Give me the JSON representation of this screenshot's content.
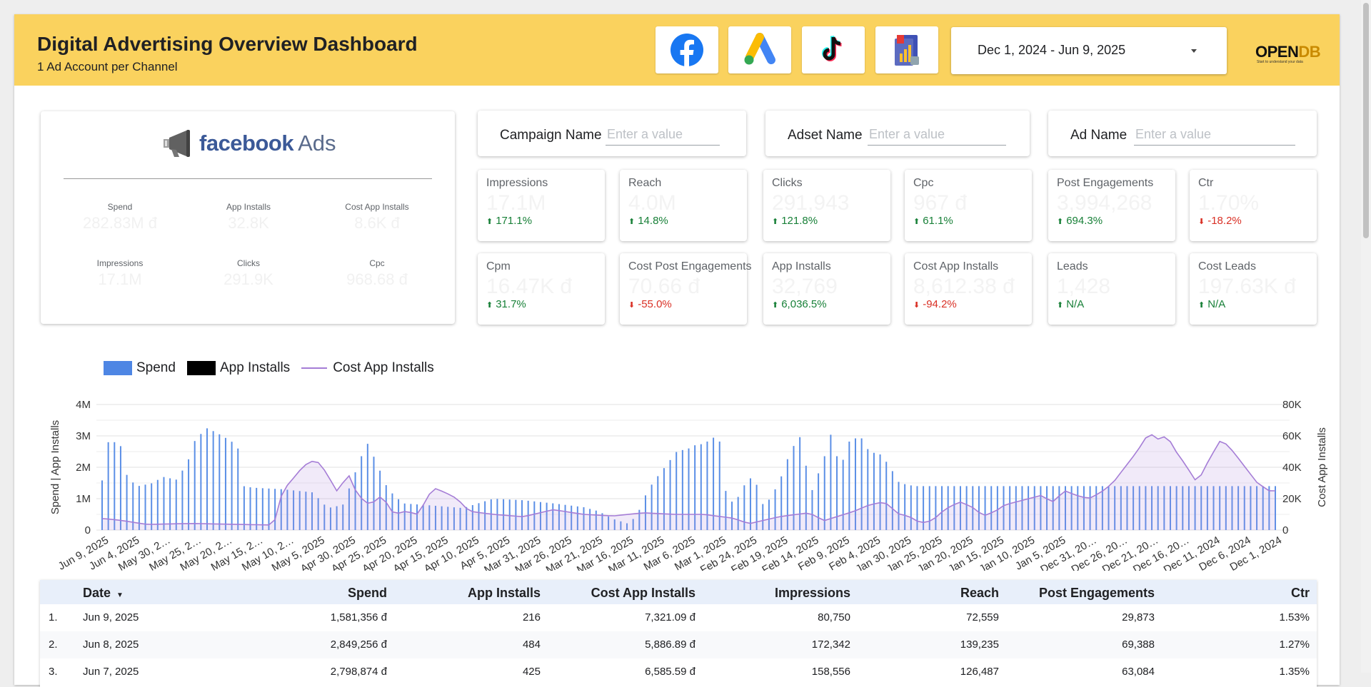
{
  "header": {
    "title": "Digital Advertising Overview Dashboard",
    "subtitle": "1 Ad Account per Channel",
    "channels": [
      {
        "name": "facebook-icon"
      },
      {
        "name": "google-ads-icon"
      },
      {
        "name": "tiktok-icon"
      },
      {
        "name": "report-icon"
      }
    ],
    "date_range": "Dec 1, 2024 - Jun 9, 2025",
    "logo_text": "OPEN",
    "logo_suffix": "DB",
    "logo_tagline": "Start to understand your data"
  },
  "fb_card": {
    "brand": "facebook",
    "brand_suffix": "Ads",
    "stats": [
      {
        "label": "Spend",
        "value": "282.83M đ"
      },
      {
        "label": "App Installs",
        "value": "32.8K"
      },
      {
        "label": "Cost App Installs",
        "value": "8.6K đ"
      },
      {
        "label": "Impressions",
        "value": "17.1M"
      },
      {
        "label": "Clicks",
        "value": "291.9K"
      },
      {
        "label": "Cpc",
        "value": "968.68 đ"
      }
    ]
  },
  "filters": [
    {
      "label": "Campaign Name",
      "placeholder": "Enter a value"
    },
    {
      "label": "Adset Name",
      "placeholder": "Enter a value"
    },
    {
      "label": "Ad Name",
      "placeholder": "Enter a value"
    }
  ],
  "kpis": [
    {
      "label": "Impressions",
      "value": "17.1M",
      "delta": "171.1%",
      "dir": "up"
    },
    {
      "label": "Reach",
      "value": "4.0M",
      "delta": "14.8%",
      "dir": "up"
    },
    {
      "label": "Clicks",
      "value": "291,943",
      "delta": "121.8%",
      "dir": "up"
    },
    {
      "label": "Cpc",
      "value": "967 đ",
      "delta": "61.1%",
      "dir": "up"
    },
    {
      "label": "Post Engagements",
      "value": "3,994,268",
      "delta": "694.3%",
      "dir": "up"
    },
    {
      "label": "Ctr",
      "value": "1.70%",
      "delta": "-18.2%",
      "dir": "down"
    },
    {
      "label": "Cpm",
      "value": "16.47K đ",
      "delta": "31.7%",
      "dir": "up"
    },
    {
      "label": "Cost Post Engagements",
      "value": "70.66 đ",
      "delta": "-55.0%",
      "dir": "down"
    },
    {
      "label": "App Installs",
      "value": "32,769",
      "delta": "6,036.5%",
      "dir": "up"
    },
    {
      "label": "Cost App Installs",
      "value": "8,612.38 đ",
      "delta": "-94.2%",
      "dir": "down"
    },
    {
      "label": "Leads",
      "value": "1,428",
      "delta": "N/A",
      "dir": "up"
    },
    {
      "label": "Cost Leads",
      "value": "197.63K đ",
      "delta": "N/A",
      "dir": "up"
    }
  ],
  "chart_data": {
    "type": "bar",
    "legend": [
      "Spend",
      "App Installs",
      "Cost App Installs"
    ],
    "legend_position": "top-left",
    "ylabel": "Spend | App Installs",
    "y2label": "Cost App Installs",
    "ylim": [
      0,
      4000000
    ],
    "y2lim": [
      0,
      80000
    ],
    "yticks": [
      "0",
      "1M",
      "2M",
      "3M",
      "4M"
    ],
    "y2ticks": [
      "0",
      "20K",
      "40K",
      "60K",
      "80K"
    ],
    "grid": true,
    "x_start": "Jun 9, 2025",
    "x_end": "Dec 1, 2024",
    "xtick_labels": [
      "Jun 9, 2025",
      "Jun 4, 2025",
      "May 30, 2…",
      "May 25, 2…",
      "May 20, 2…",
      "May 15, 2…",
      "May 10, 2…",
      "May 5, 2025",
      "Apr 30, 2025",
      "Apr 25, 2025",
      "Apr 20, 2025",
      "Apr 15, 2025",
      "Apr 10, 2025",
      "Apr 5, 2025",
      "Mar 31, 2025",
      "Mar 26, 2025",
      "Mar 21, 2025",
      "Mar 16, 2025",
      "Mar 11, 2025",
      "Mar 6, 2025",
      "Mar 1, 2025",
      "Feb 24, 2025",
      "Feb 19, 2025",
      "Feb 14, 2025",
      "Feb 9, 2025",
      "Feb 4, 2025",
      "Jan 30, 2025",
      "Jan 25, 2025",
      "Jan 20, 2025",
      "Jan 15, 2025",
      "Jan 10, 2025",
      "Jan 5, 2025",
      "Dec 31, 20…",
      "Dec 26, 20…",
      "Dec 21, 20…",
      "Dec 16, 20…",
      "Dec 11, 2024",
      "Dec 6, 2024",
      "Dec 1, 2024"
    ],
    "spend_anchors": [
      [
        0,
        1581356
      ],
      [
        1,
        2849256
      ],
      [
        2,
        2798874
      ],
      [
        3,
        2800000
      ],
      [
        6,
        2800000
      ],
      [
        7,
        2000000
      ],
      [
        9,
        1600000
      ],
      [
        12,
        1400000
      ],
      [
        17,
        1500000
      ],
      [
        20,
        1700000
      ],
      [
        25,
        1600000
      ],
      [
        29,
        2300000
      ],
      [
        31,
        2900000
      ],
      [
        35,
        3250000
      ],
      [
        40,
        3000000
      ],
      [
        45,
        2700000
      ],
      [
        47,
        1400000
      ],
      [
        50,
        1350000
      ],
      [
        60,
        1300000
      ],
      [
        70,
        1200000
      ],
      [
        75,
        700000
      ],
      [
        80,
        800000
      ],
      [
        84,
        1800000
      ],
      [
        88,
        2800000
      ],
      [
        91,
        2200000
      ],
      [
        95,
        1300000
      ],
      [
        100,
        850000
      ],
      [
        110,
        780000
      ],
      [
        120,
        700000
      ],
      [
        130,
        1000000
      ],
      [
        140,
        950000
      ],
      [
        150,
        850000
      ],
      [
        160,
        730000
      ],
      [
        165,
        600000
      ],
      [
        170,
        350000
      ],
      [
        175,
        200000
      ],
      [
        178,
        500000
      ],
      [
        180,
        1000000
      ],
      [
        183,
        1500000
      ],
      [
        187,
        2000000
      ],
      [
        191,
        2500000
      ],
      [
        195,
        2600000
      ],
      [
        197,
        2700000
      ],
      [
        200,
        2750000
      ],
      [
        205,
        3050000
      ],
      [
        207,
        1300000
      ],
      [
        210,
        800000
      ],
      [
        215,
        1700000
      ],
      [
        218,
        1400000
      ],
      [
        220,
        700000
      ],
      [
        225,
        1500000
      ],
      [
        228,
        2300000
      ],
      [
        230,
        2700000
      ],
      [
        233,
        3100000
      ],
      [
        235,
        1000000
      ],
      [
        240,
        2300000
      ],
      [
        243,
        3300000
      ],
      [
        245,
        1800000
      ],
      [
        248,
        2800000
      ],
      [
        252,
        3000000
      ],
      [
        255,
        2500000
      ],
      [
        259,
        2400000
      ],
      [
        262,
        2000000
      ],
      [
        265,
        1500000
      ],
      [
        270,
        1400000
      ]
    ],
    "cost_anchors": [
      [
        0,
        7321
      ],
      [
        5,
        6500
      ],
      [
        15,
        3600
      ],
      [
        30,
        4200
      ],
      [
        45,
        3600
      ],
      [
        57,
        3200
      ],
      [
        60,
        25000
      ],
      [
        64,
        34000
      ],
      [
        67,
        41000
      ],
      [
        71,
        45000
      ],
      [
        74,
        38000
      ],
      [
        78,
        25000
      ],
      [
        82,
        35000
      ],
      [
        85,
        22000
      ],
      [
        89,
        16000
      ],
      [
        93,
        22000
      ],
      [
        97,
        10000
      ],
      [
        101,
        12000
      ],
      [
        105,
        10000
      ],
      [
        110,
        27000
      ],
      [
        114,
        24000
      ],
      [
        118,
        20000
      ],
      [
        122,
        12000
      ],
      [
        130,
        10000
      ],
      [
        140,
        8500
      ],
      [
        150,
        13000
      ],
      [
        160,
        10000
      ],
      [
        170,
        9000
      ],
      [
        180,
        11000
      ],
      [
        190,
        10000
      ],
      [
        200,
        10000
      ],
      [
        210,
        7500
      ],
      [
        215,
        4000
      ],
      [
        225,
        8500
      ],
      [
        235,
        11000
      ],
      [
        240,
        6000
      ],
      [
        245,
        9000
      ],
      [
        250,
        12000
      ],
      [
        255,
        16000
      ],
      [
        260,
        18000
      ],
      [
        265,
        10000
      ],
      [
        268,
        9000
      ],
      [
        272,
        4500
      ],
      [
        276,
        6000
      ],
      [
        280,
        13000
      ],
      [
        285,
        18000
      ],
      [
        289,
        15000
      ],
      [
        293,
        9000
      ],
      [
        297,
        12000
      ],
      [
        300,
        16000
      ],
      [
        304,
        18000
      ],
      [
        308,
        20000
      ],
      [
        312,
        22000
      ],
      [
        316,
        18000
      ],
      [
        320,
        25000
      ],
      [
        324,
        22000
      ],
      [
        328,
        20000
      ],
      [
        332,
        24000
      ],
      [
        336,
        30000
      ],
      [
        340,
        40000
      ],
      [
        344,
        50000
      ],
      [
        348,
        62000
      ],
      [
        351,
        58000
      ],
      [
        354,
        60000
      ],
      [
        357,
        50000
      ],
      [
        360,
        42000
      ],
      [
        364,
        30000
      ],
      [
        368,
        45000
      ],
      [
        372,
        58000
      ],
      [
        376,
        50000
      ],
      [
        380,
        40000
      ],
      [
        384,
        30000
      ],
      [
        388,
        25000
      ]
    ],
    "point_count": 191
  },
  "table": {
    "columns": [
      "Date",
      "Spend",
      "App Installs",
      "Cost App Installs",
      "Impressions",
      "Reach",
      "Post Engagements",
      "Ctr"
    ],
    "rows": [
      {
        "idx": "1.",
        "date": "Jun 9, 2025",
        "spend": "1,581,356 đ",
        "installs": "216",
        "cost_installs": "7,321.09 đ",
        "impressions": "80,750",
        "reach": "72,559",
        "engagements": "29,873",
        "ctr": "1.53%"
      },
      {
        "idx": "2.",
        "date": "Jun 8, 2025",
        "spend": "2,849,256 đ",
        "installs": "484",
        "cost_installs": "5,886.89 đ",
        "impressions": "172,342",
        "reach": "139,235",
        "engagements": "69,388",
        "ctr": "1.27%"
      },
      {
        "idx": "3.",
        "date": "Jun 7, 2025",
        "spend": "2,798,874 đ",
        "installs": "425",
        "cost_installs": "6,585.59 đ",
        "impressions": "158,556",
        "reach": "126,487",
        "engagements": "63,084",
        "ctr": "1.35%"
      }
    ]
  }
}
